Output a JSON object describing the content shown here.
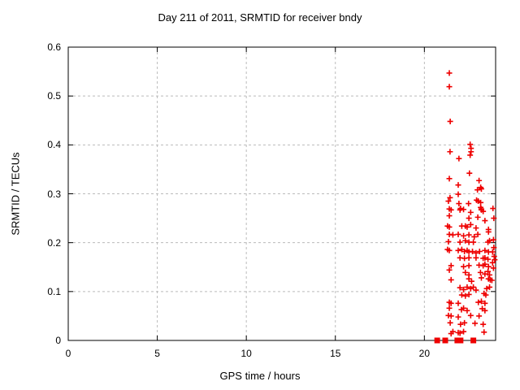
{
  "chart_data": {
    "type": "scatter",
    "title": "Day 211 of 2011, SRMTID for receiver bndy",
    "xlabel": "GPS time / hours",
    "ylabel": "SRMTID / TECUs",
    "xlim": [
      0,
      24
    ],
    "ylim": [
      0,
      0.6
    ],
    "xticks": [
      0,
      5,
      10,
      15,
      20
    ],
    "xtick_labels": [
      "0",
      "5",
      "10",
      "15",
      "20"
    ],
    "yticks": [
      0,
      0.1,
      0.2,
      0.3,
      0.4,
      0.5,
      0.6
    ],
    "ytick_labels": [
      "0",
      "0.1",
      "0.2",
      "0.3",
      "0.4",
      "0.5",
      "0.6"
    ],
    "grid": true,
    "legend": "none",
    "marker": "plus",
    "marker_color": "#ee0000",
    "grid_color": "#bbbbbb",
    "frame_color": "#000000",
    "series": [
      {
        "name": "SRMTID",
        "points": [
          [
            21.4,
            0.547
          ],
          [
            21.4,
            0.519
          ],
          [
            21.45,
            0.448
          ],
          [
            22.57,
            0.401
          ],
          [
            22.62,
            0.393
          ],
          [
            21.44,
            0.386
          ],
          [
            22.62,
            0.386
          ],
          [
            22.57,
            0.379
          ],
          [
            21.94,
            0.372
          ],
          [
            22.53,
            0.342
          ],
          [
            21.4,
            0.331
          ],
          [
            23.07,
            0.327
          ],
          [
            21.9,
            0.318
          ],
          [
            23.16,
            0.313
          ],
          [
            23.2,
            0.31
          ],
          [
            22.98,
            0.308
          ],
          [
            21.9,
            0.299
          ],
          [
            21.44,
            0.292
          ],
          [
            22.93,
            0.287
          ],
          [
            21.35,
            0.285
          ],
          [
            23.02,
            0.285
          ],
          [
            23.16,
            0.282
          ],
          [
            21.94,
            0.28
          ],
          [
            22.48,
            0.28
          ],
          [
            23.16,
            0.272
          ],
          [
            22.03,
            0.27
          ],
          [
            21.4,
            0.269
          ],
          [
            23.2,
            0.269
          ],
          [
            21.5,
            0.267
          ],
          [
            22.0,
            0.267
          ],
          [
            22.2,
            0.268
          ],
          [
            23.2,
            0.267
          ],
          [
            23.85,
            0.27
          ],
          [
            23.3,
            0.264
          ],
          [
            22.6,
            0.262
          ],
          [
            21.4,
            0.255
          ],
          [
            23.0,
            0.252
          ],
          [
            22.5,
            0.25
          ],
          [
            23.9,
            0.25
          ],
          [
            23.4,
            0.245
          ],
          [
            22.6,
            0.237
          ],
          [
            21.3,
            0.234
          ],
          [
            22.1,
            0.234
          ],
          [
            22.3,
            0.234
          ],
          [
            21.4,
            0.232
          ],
          [
            22.4,
            0.232
          ],
          [
            22.9,
            0.23
          ],
          [
            23.6,
            0.227
          ],
          [
            23.6,
            0.222
          ],
          [
            21.4,
            0.217
          ],
          [
            21.9,
            0.217
          ],
          [
            23.0,
            0.217
          ],
          [
            21.6,
            0.216
          ],
          [
            22.5,
            0.216
          ],
          [
            22.2,
            0.214
          ],
          [
            22.8,
            0.212
          ],
          [
            23.88,
            0.206
          ],
          [
            21.35,
            0.202
          ],
          [
            22.3,
            0.204
          ],
          [
            23.66,
            0.204
          ],
          [
            22.0,
            0.201
          ],
          [
            22.5,
            0.201
          ],
          [
            22.75,
            0.201
          ],
          [
            23.57,
            0.201
          ],
          [
            23.9,
            0.19
          ],
          [
            21.3,
            0.186
          ],
          [
            22.1,
            0.186
          ],
          [
            21.4,
            0.184
          ],
          [
            21.9,
            0.184
          ],
          [
            22.4,
            0.184
          ],
          [
            23.4,
            0.184
          ],
          [
            22.25,
            0.182
          ],
          [
            22.7,
            0.182
          ],
          [
            23.1,
            0.182
          ],
          [
            22.5,
            0.181
          ],
          [
            23.6,
            0.181
          ],
          [
            23.83,
            0.181
          ],
          [
            22.9,
            0.179
          ],
          [
            23.92,
            0.172
          ],
          [
            22.0,
            0.169
          ],
          [
            22.5,
            0.169
          ],
          [
            22.9,
            0.169
          ],
          [
            23.4,
            0.169
          ],
          [
            22.25,
            0.168
          ],
          [
            23.3,
            0.168
          ],
          [
            23.57,
            0.166
          ],
          [
            23.95,
            0.165
          ],
          [
            23.83,
            0.159
          ],
          [
            23.4,
            0.156
          ],
          [
            23.07,
            0.154
          ],
          [
            21.5,
            0.153
          ],
          [
            22.5,
            0.153
          ],
          [
            23.3,
            0.153
          ],
          [
            22.2,
            0.151
          ],
          [
            23.6,
            0.151
          ],
          [
            23.88,
            0.148
          ],
          [
            21.4,
            0.144
          ],
          [
            23.57,
            0.141
          ],
          [
            22.3,
            0.139
          ],
          [
            23.15,
            0.139
          ],
          [
            23.4,
            0.136
          ],
          [
            22.5,
            0.134
          ],
          [
            23.66,
            0.134
          ],
          [
            23.2,
            0.128
          ],
          [
            22.5,
            0.126
          ],
          [
            23.6,
            0.126
          ],
          [
            21.5,
            0.124
          ],
          [
            23.7,
            0.124
          ],
          [
            23.79,
            0.123
          ],
          [
            22.65,
            0.121
          ],
          [
            22.4,
            0.109
          ],
          [
            22.75,
            0.109
          ],
          [
            23.66,
            0.109
          ],
          [
            22.0,
            0.108
          ],
          [
            22.6,
            0.106
          ],
          [
            23.5,
            0.106
          ],
          [
            22.2,
            0.104
          ],
          [
            22.9,
            0.103
          ],
          [
            23.35,
            0.096
          ],
          [
            22.5,
            0.094
          ],
          [
            22.1,
            0.093
          ],
          [
            23.45,
            0.093
          ],
          [
            22.3,
            0.091
          ],
          [
            23.2,
            0.08
          ],
          [
            21.4,
            0.078
          ],
          [
            23.03,
            0.078
          ],
          [
            21.5,
            0.076
          ],
          [
            21.9,
            0.076
          ],
          [
            23.4,
            0.076
          ],
          [
            21.4,
            0.066
          ],
          [
            22.2,
            0.066
          ],
          [
            23.25,
            0.065
          ],
          [
            22.08,
            0.063
          ],
          [
            22.4,
            0.061
          ],
          [
            23.4,
            0.061
          ],
          [
            21.35,
            0.051
          ],
          [
            22.6,
            0.051
          ],
          [
            21.5,
            0.05
          ],
          [
            23.07,
            0.05
          ],
          [
            21.9,
            0.048
          ],
          [
            21.45,
            0.036
          ],
          [
            22.25,
            0.036
          ],
          [
            22.84,
            0.035
          ],
          [
            22.03,
            0.033
          ],
          [
            23.3,
            0.033
          ],
          [
            21.6,
            0.018
          ],
          [
            22.2,
            0.018
          ],
          [
            23.35,
            0.017
          ],
          [
            21.9,
            0.016
          ],
          [
            22.0,
            0.015
          ],
          [
            21.5,
            0.014
          ],
          [
            20.72,
            0.0
          ],
          [
            21.17,
            0.0
          ],
          [
            21.85,
            0.0
          ],
          [
            22.03,
            0.0
          ],
          [
            22.75,
            0.0
          ]
        ]
      }
    ]
  }
}
